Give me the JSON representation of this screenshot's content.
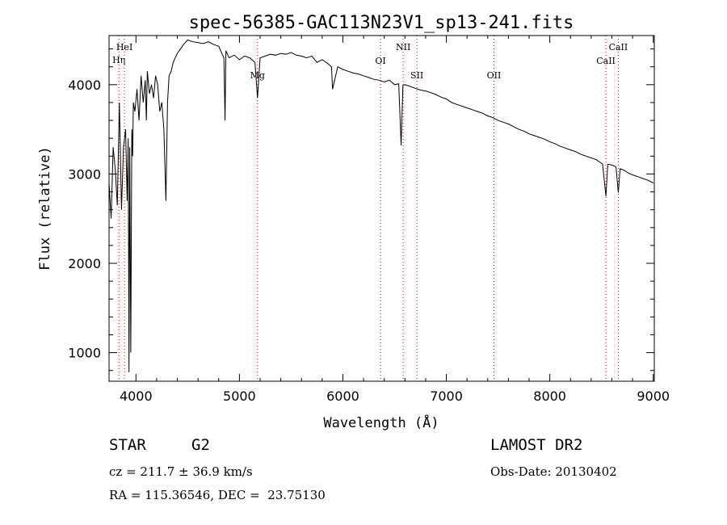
{
  "chart_data": {
    "type": "line",
    "title": "spec-56385-GAC113N23V1_sp13-241.fits",
    "xlabel": "Wavelength (Å)",
    "ylabel": "Flux (relative)",
    "xlim": [
      3740,
      9010
    ],
    "ylim": [
      680,
      4550
    ],
    "x_ticks": [
      4000,
      5000,
      6000,
      7000,
      8000,
      9000
    ],
    "y_ticks": [
      1000,
      2000,
      3000,
      4000
    ],
    "grid": false,
    "line_color": "#000000",
    "marker_color": "#cc0000",
    "series": [
      {
        "x": [
          3740,
          3760,
          3780,
          3800,
          3820,
          3840,
          3860,
          3880,
          3900,
          3915,
          3925,
          3933,
          3940,
          3950,
          3960,
          3968,
          3975,
          3990,
          4010,
          4030,
          4050,
          4070,
          4090,
          4101,
          4110,
          4130,
          4150,
          4170,
          4190,
          4210,
          4230,
          4250,
          4270,
          4290,
          4305,
          4320,
          4340,
          4360,
          4380,
          4400,
          4430,
          4460,
          4500,
          4550,
          4600,
          4650,
          4700,
          4750,
          4800,
          4830,
          4850,
          4861,
          4870,
          4900,
          4950,
          5000,
          5050,
          5100,
          5150,
          5175,
          5200,
          5250,
          5300,
          5350,
          5400,
          5450,
          5500,
          5550,
          5600,
          5650,
          5700,
          5750,
          5800,
          5850,
          5890,
          5900,
          5950,
          6000,
          6050,
          6100,
          6150,
          6200,
          6250,
          6300,
          6350,
          6400,
          6450,
          6500,
          6540,
          6563,
          6580,
          6600,
          6650,
          6700,
          6750,
          6800,
          6850,
          6900,
          6950,
          7000,
          7050,
          7100,
          7150,
          7200,
          7250,
          7300,
          7350,
          7400,
          7450,
          7500,
          7550,
          7600,
          7650,
          7700,
          7750,
          7800,
          7850,
          7900,
          7950,
          8000,
          8050,
          8100,
          8150,
          8200,
          8250,
          8300,
          8350,
          8400,
          8450,
          8498,
          8510,
          8542,
          8560,
          8600,
          8640,
          8662,
          8680,
          8720,
          8760,
          8800,
          8850,
          8900,
          8950,
          9000
        ],
        "y": [
          2900,
          2500,
          3300,
          3050,
          2650,
          3800,
          2600,
          3300,
          3500,
          2700,
          3400,
          780,
          3300,
          1000,
          3500,
          3200,
          3800,
          3700,
          3950,
          3600,
          4100,
          3800,
          4050,
          3600,
          4150,
          3900,
          4000,
          3850,
          4100,
          4000,
          3700,
          3800,
          3500,
          2700,
          3800,
          4100,
          4150,
          4250,
          4300,
          4350,
          4400,
          4450,
          4500,
          4480,
          4470,
          4460,
          4480,
          4450,
          4430,
          4350,
          4300,
          3600,
          4380,
          4300,
          4330,
          4280,
          4320,
          4300,
          4250,
          3850,
          4300,
          4320,
          4340,
          4330,
          4350,
          4340,
          4360,
          4330,
          4320,
          4300,
          4320,
          4250,
          4280,
          4240,
          4200,
          3950,
          4200,
          4170,
          4150,
          4130,
          4120,
          4100,
          4080,
          4060,
          4050,
          4030,
          4050,
          4000,
          4010,
          3320,
          3990,
          4000,
          3980,
          3960,
          3940,
          3930,
          3910,
          3890,
          3860,
          3840,
          3800,
          3780,
          3760,
          3740,
          3720,
          3700,
          3680,
          3650,
          3630,
          3600,
          3580,
          3560,
          3530,
          3500,
          3480,
          3450,
          3430,
          3410,
          3390,
          3360,
          3340,
          3310,
          3290,
          3270,
          3250,
          3220,
          3200,
          3180,
          3160,
          3120,
          3110,
          2750,
          3110,
          3100,
          3080,
          2790,
          3060,
          3040,
          3010,
          2990,
          2970,
          2950,
          2930,
          2900
        ]
      }
    ],
    "line_markers": [
      {
        "label": "Hη",
        "x": 3835,
        "level": "high"
      },
      {
        "label": "HeI",
        "x": 3889,
        "level": "top"
      },
      {
        "label": "Mg",
        "x": 5175,
        "level": "mid"
      },
      {
        "label": "OI",
        "x": 6364,
        "level": "low"
      },
      {
        "label": "NII",
        "x": 6583,
        "level": "top"
      },
      {
        "label": "SII",
        "x": 6716,
        "level": "mid"
      },
      {
        "label": "OII",
        "x": 7460,
        "level": "mid"
      },
      {
        "label": "CaII",
        "x": 8542,
        "level": "low"
      },
      {
        "label": "CaII",
        "x": 8662,
        "level": "top"
      }
    ]
  },
  "info": {
    "object_class": "STAR",
    "subclass": "G2",
    "survey": "LAMOST DR2",
    "redshift_line": "cz = 211.7 ± 36.9 km/s",
    "obs_date_line": "Obs-Date: 20130402",
    "coords_line": "RA = 115.36546, DEC =  23.75130"
  }
}
